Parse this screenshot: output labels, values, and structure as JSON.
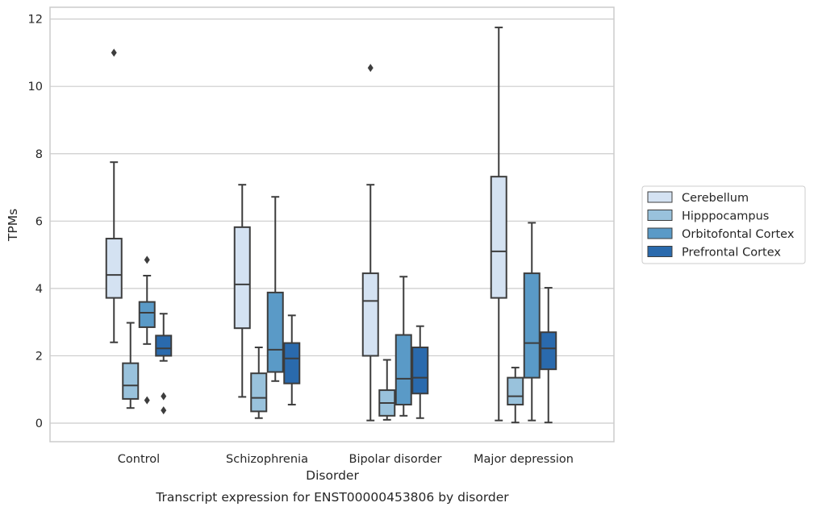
{
  "chart_data": {
    "type": "box",
    "title": "",
    "caption": "Transcript expression for ENST00000453806 by disorder",
    "xlabel": "Disorder",
    "ylabel": "TPMs",
    "ylim": [
      -0.55,
      12.35
    ],
    "yticks": [
      0,
      2,
      4,
      6,
      8,
      10,
      12
    ],
    "grid": true,
    "legend_position": "right",
    "categories": [
      "Control",
      "Schizophrenia",
      "Bipolar disorder",
      "Major depression"
    ],
    "series": [
      {
        "name": "Cerebellum",
        "color": "#d4e2f2",
        "boxes": [
          {
            "whisker_low": 2.4,
            "q1": 3.72,
            "median": 4.4,
            "q3": 5.48,
            "whisker_high": 7.75,
            "outliers": [
              11.0
            ]
          },
          {
            "whisker_low": 0.78,
            "q1": 2.82,
            "median": 4.12,
            "q3": 5.82,
            "whisker_high": 7.08,
            "outliers": []
          },
          {
            "whisker_low": 0.08,
            "q1": 2.0,
            "median": 3.63,
            "q3": 4.45,
            "whisker_high": 7.08,
            "outliers": [
              10.55
            ]
          },
          {
            "whisker_low": 0.08,
            "q1": 3.72,
            "median": 5.1,
            "q3": 7.32,
            "whisker_high": 11.75,
            "outliers": []
          }
        ]
      },
      {
        "name": "Hipppocampus",
        "color": "#99c2dc",
        "boxes": [
          {
            "whisker_low": 0.45,
            "q1": 0.72,
            "median": 1.12,
            "q3": 1.78,
            "whisker_high": 2.98,
            "outliers": []
          },
          {
            "whisker_low": 0.15,
            "q1": 0.35,
            "median": 0.75,
            "q3": 1.48,
            "whisker_high": 2.25,
            "outliers": []
          },
          {
            "whisker_low": 0.1,
            "q1": 0.22,
            "median": 0.6,
            "q3": 0.98,
            "whisker_high": 1.88,
            "outliers": []
          },
          {
            "whisker_low": 0.02,
            "q1": 0.55,
            "median": 0.8,
            "q3": 1.35,
            "whisker_high": 1.65,
            "outliers": []
          }
        ]
      },
      {
        "name": "Orbitofontal Cortex",
        "color": "#5a9ac7",
        "boxes": [
          {
            "whisker_low": 2.35,
            "q1": 2.85,
            "median": 3.28,
            "q3": 3.6,
            "whisker_high": 4.38,
            "outliers": [
              4.85,
              0.68
            ]
          },
          {
            "whisker_low": 1.25,
            "q1": 1.52,
            "median": 2.18,
            "q3": 3.88,
            "whisker_high": 6.72,
            "outliers": []
          },
          {
            "whisker_low": 0.22,
            "q1": 0.55,
            "median": 1.32,
            "q3": 2.62,
            "whisker_high": 4.35,
            "outliers": []
          },
          {
            "whisker_low": 0.08,
            "q1": 1.35,
            "median": 2.38,
            "q3": 4.45,
            "whisker_high": 5.95,
            "outliers": []
          }
        ]
      },
      {
        "name": "Prefrontal Cortex",
        "color": "#2a6aad",
        "boxes": [
          {
            "whisker_low": 1.85,
            "q1": 2.0,
            "median": 2.22,
            "q3": 2.6,
            "whisker_high": 3.25,
            "outliers": [
              0.8,
              0.38
            ]
          },
          {
            "whisker_low": 0.55,
            "q1": 1.18,
            "median": 1.92,
            "q3": 2.38,
            "whisker_high": 3.2,
            "outliers": []
          },
          {
            "whisker_low": 0.15,
            "q1": 0.88,
            "median": 1.35,
            "q3": 2.25,
            "whisker_high": 2.88,
            "outliers": []
          },
          {
            "whisker_low": 0.02,
            "q1": 1.6,
            "median": 2.22,
            "q3": 2.7,
            "whisker_high": 4.02,
            "outliers": []
          }
        ]
      }
    ]
  }
}
